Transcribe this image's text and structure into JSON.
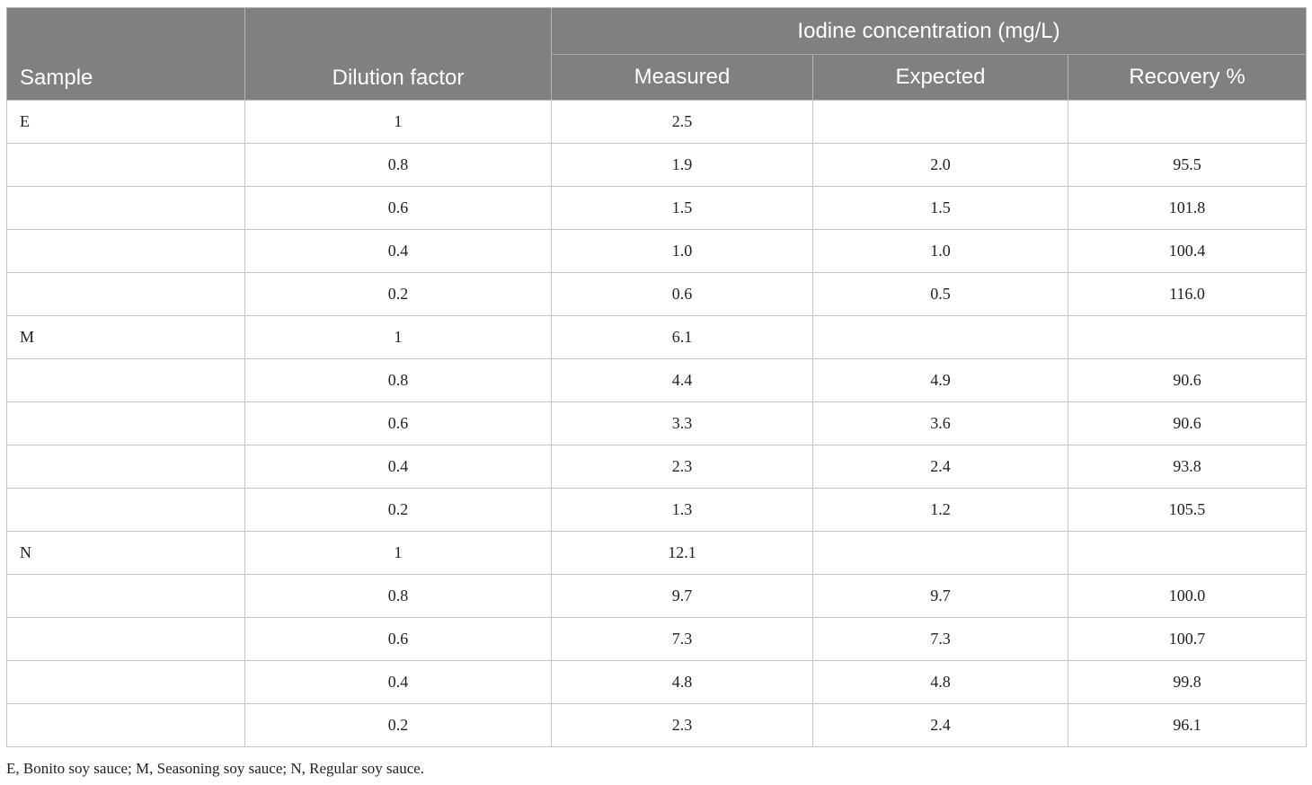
{
  "table": {
    "headers": {
      "sample": "Sample",
      "dilution": "Dilution factor",
      "group": "Iodine concentration (mg/L)",
      "measured": "Measured",
      "expected": "Expected",
      "recovery": "Recovery %"
    },
    "rows": [
      {
        "sample": "E",
        "dilution": "1",
        "measured": "2.5",
        "expected": "",
        "recovery": ""
      },
      {
        "sample": "",
        "dilution": "0.8",
        "measured": "1.9",
        "expected": "2.0",
        "recovery": "95.5"
      },
      {
        "sample": "",
        "dilution": "0.6",
        "measured": "1.5",
        "expected": "1.5",
        "recovery": "101.8"
      },
      {
        "sample": "",
        "dilution": "0.4",
        "measured": "1.0",
        "expected": "1.0",
        "recovery": "100.4"
      },
      {
        "sample": "",
        "dilution": "0.2",
        "measured": "0.6",
        "expected": "0.5",
        "recovery": "116.0"
      },
      {
        "sample": "M",
        "dilution": "1",
        "measured": "6.1",
        "expected": "",
        "recovery": ""
      },
      {
        "sample": "",
        "dilution": "0.8",
        "measured": "4.4",
        "expected": "4.9",
        "recovery": "90.6"
      },
      {
        "sample": "",
        "dilution": "0.6",
        "measured": "3.3",
        "expected": "3.6",
        "recovery": "90.6"
      },
      {
        "sample": "",
        "dilution": "0.4",
        "measured": "2.3",
        "expected": "2.4",
        "recovery": "93.8"
      },
      {
        "sample": "",
        "dilution": "0.2",
        "measured": "1.3",
        "expected": "1.2",
        "recovery": "105.5"
      },
      {
        "sample": "N",
        "dilution": "1",
        "measured": "12.1",
        "expected": "",
        "recovery": ""
      },
      {
        "sample": "",
        "dilution": "0.8",
        "measured": "9.7",
        "expected": "9.7",
        "recovery": "100.0"
      },
      {
        "sample": "",
        "dilution": "0.6",
        "measured": "7.3",
        "expected": "7.3",
        "recovery": "100.7"
      },
      {
        "sample": "",
        "dilution": "0.4",
        "measured": "4.8",
        "expected": "4.8",
        "recovery": "99.8"
      },
      {
        "sample": "",
        "dilution": "0.2",
        "measured": "2.3",
        "expected": "2.4",
        "recovery": "96.1"
      }
    ]
  },
  "footnote": "E, Bonito soy sauce; M, Seasoning soy sauce; N, Regular soy sauce."
}
